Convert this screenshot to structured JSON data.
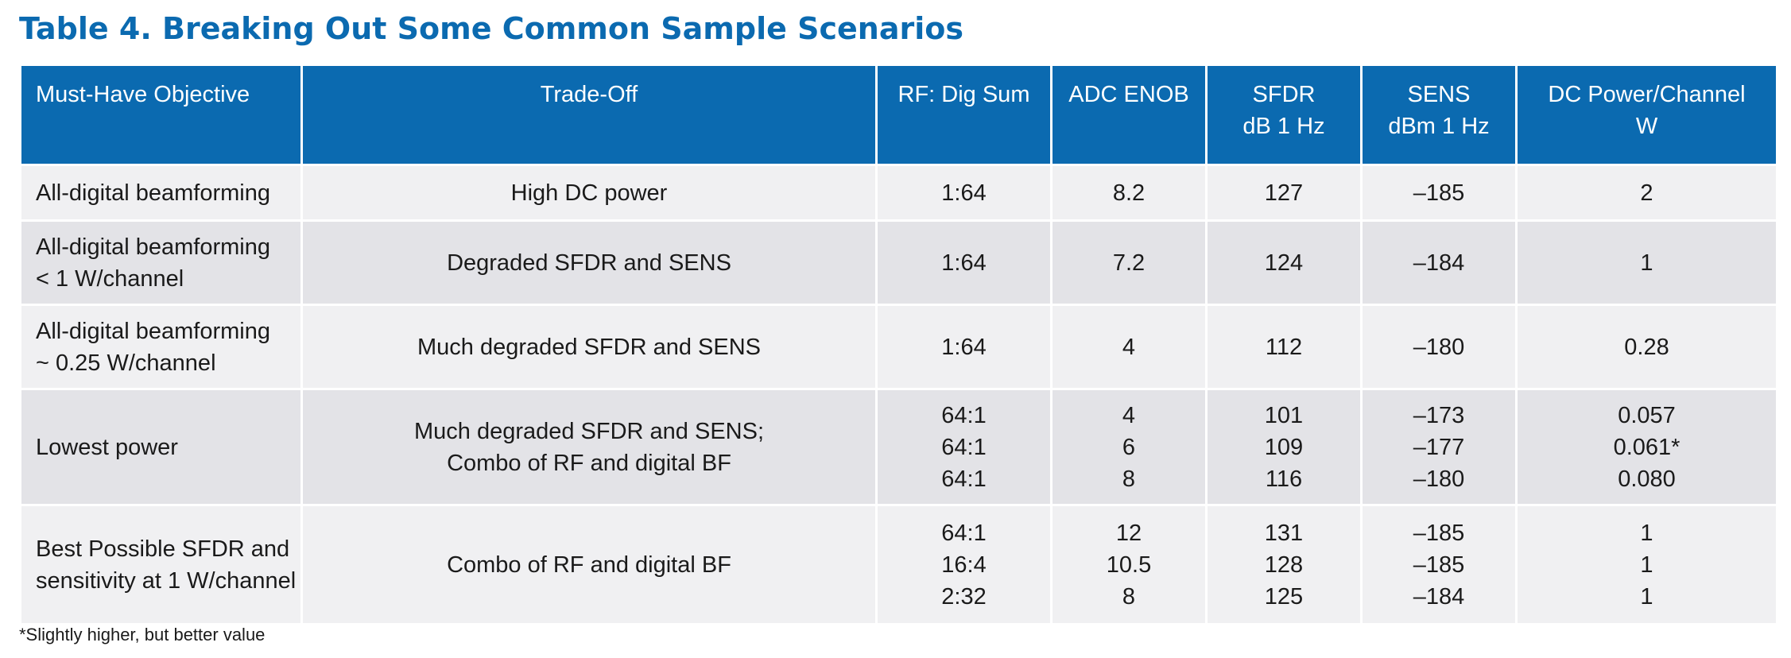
{
  "title": "Table 4. Breaking Out Some Common Sample Scenarios",
  "columns": [
    "Must-Have Objective",
    "Trade-Off",
    "RF: Dig Sum",
    "ADC ENOB",
    "SFDR\ndB 1 Hz",
    "SENS\ndBm 1 Hz",
    "DC Power/Channel\nW"
  ],
  "rows": [
    {
      "objective": "All-digital beamforming",
      "tradeoff": "High DC power",
      "rf_dig_sum": "1:64",
      "adc_enob": "8.2",
      "sfdr": "127",
      "sens": "–185",
      "dc_power": "2"
    },
    {
      "objective": "All-digital beamforming\n< 1 W/channel",
      "tradeoff": "Degraded SFDR and SENS",
      "rf_dig_sum": "1:64",
      "adc_enob": "7.2",
      "sfdr": "124",
      "sens": "–184",
      "dc_power": "1"
    },
    {
      "objective": "All-digital beamforming\n~ 0.25 W/channel",
      "tradeoff": "Much degraded SFDR and SENS",
      "rf_dig_sum": "1:64",
      "adc_enob": "4",
      "sfdr": "112",
      "sens": "–180",
      "dc_power": "0.28"
    },
    {
      "objective": "Lowest power",
      "tradeoff": "Much degraded SFDR and SENS;\nCombo of RF and digital BF",
      "rf_dig_sum": "64:1\n64:1\n64:1",
      "adc_enob": "4\n6\n8",
      "sfdr": "101\n109\n116",
      "sens": "–173\n–177\n–180",
      "dc_power": "0.057\n0.061*\n0.080"
    },
    {
      "objective": "Best Possible SFDR and\nsensitivity at 1 W/channel",
      "tradeoff": "Combo of RF and digital BF",
      "rf_dig_sum": "64:1\n16:4\n2:32",
      "adc_enob": "12\n10.5\n8",
      "sfdr": "131\n128\n125",
      "sens": "–185\n–185\n–184",
      "dc_power": "1\n1\n1"
    }
  ],
  "footnote": "*Slightly higher, but better value",
  "colors": {
    "accent": "#0b6ab0",
    "row_light": "#f0f0f2",
    "row_dark": "#e3e3e7"
  }
}
